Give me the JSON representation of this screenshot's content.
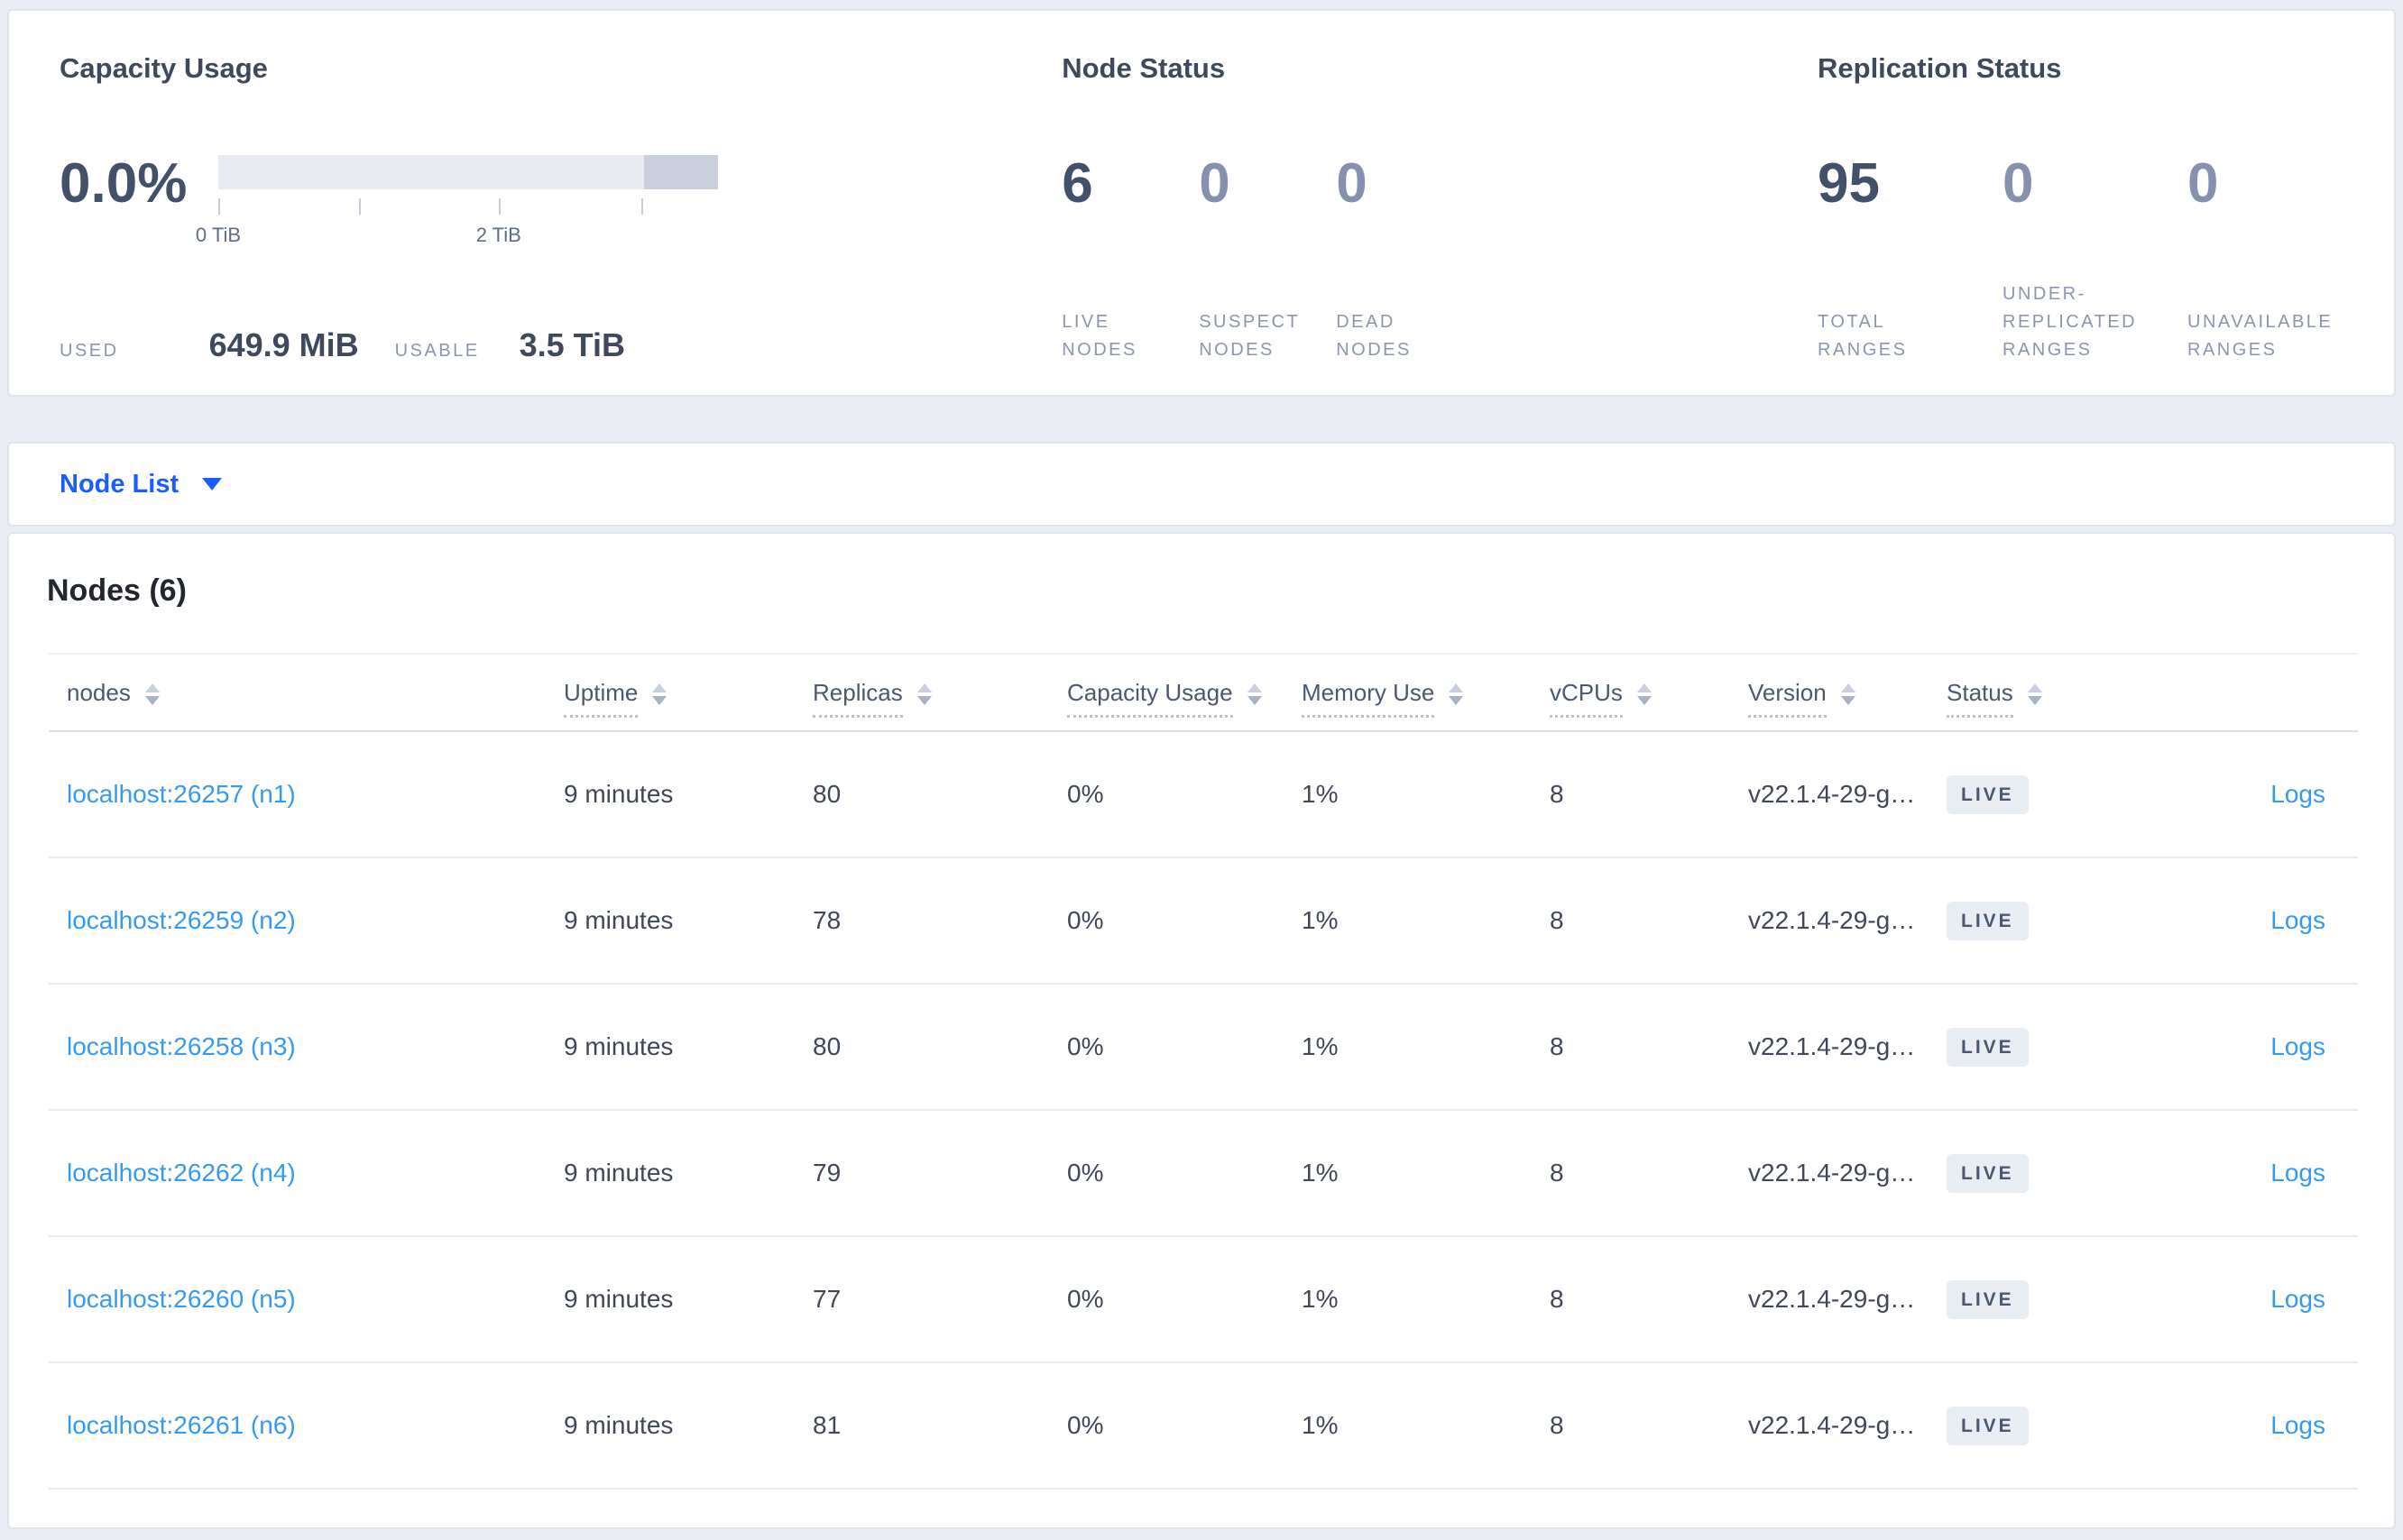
{
  "colors": {
    "page_bg": "#e9edf3",
    "card_bg": "#ffffff",
    "card_border": "#dfe4ec",
    "title_text": "#3e4a5c",
    "number_primary": "#43506a",
    "number_secondary": "#8591ae",
    "stat_label": "#8a96b1",
    "cell_text": "#3f4759",
    "header_text": "#4a5870",
    "primary_blue": "#1b5dfb",
    "link_blue": "#359af3",
    "badge_bg": "#e8edf4",
    "badge_text": "#4a5872",
    "bar_track": "#e7eaf1",
    "bar_segment": "#c9cfda",
    "row_border": "#e5eaf1",
    "tick_label": "#5f6e88"
  },
  "icons": {
    "dropdown_caret": "chevron-down",
    "column_sorter": "sort-arrows"
  },
  "summary": {
    "capacity": {
      "title": "Capacity Usage",
      "percent": "0.0%",
      "bar": {
        "ticks": [
          {
            "pos": 0,
            "label": "0 TiB"
          },
          {
            "pos": 0.282,
            "label": ""
          },
          {
            "pos": 0.561,
            "label": "2 TiB"
          },
          {
            "pos": 0.847,
            "label": ""
          }
        ],
        "segment_start": 0.852
      },
      "used_label": "USED",
      "used_value": "649.9 MiB",
      "usable_label": "USABLE",
      "usable_value": "3.5 TiB"
    },
    "node_status": {
      "title": "Node Status",
      "stats": [
        {
          "value": "6",
          "label": "LIVE NODES",
          "dim": false
        },
        {
          "value": "0",
          "label": "SUSPECT NODES",
          "dim": true
        },
        {
          "value": "0",
          "label": "DEAD NODES",
          "dim": true
        }
      ]
    },
    "replication": {
      "title": "Replication Status",
      "stats": [
        {
          "value": "95",
          "label": "TOTAL RANGES",
          "dim": false
        },
        {
          "value": "0",
          "label": "UNDER-REPLICATED RANGES",
          "dim": true
        },
        {
          "value": "0",
          "label": "UNAVAILABLE RANGES",
          "dim": true
        }
      ]
    }
  },
  "view_selector": {
    "label": "Node List"
  },
  "nodes_section": {
    "title": "Nodes (6)",
    "columns": [
      {
        "key": "nodes",
        "label": "nodes",
        "sortable": true,
        "underlined": false
      },
      {
        "key": "uptime",
        "label": "Uptime",
        "sortable": true,
        "underlined": true
      },
      {
        "key": "replicas",
        "label": "Replicas",
        "sortable": true,
        "underlined": true
      },
      {
        "key": "capacity",
        "label": "Capacity Usage",
        "sortable": true,
        "underlined": true
      },
      {
        "key": "memory",
        "label": "Memory Use",
        "sortable": true,
        "underlined": true
      },
      {
        "key": "vcpus",
        "label": "vCPUs",
        "sortable": true,
        "underlined": true
      },
      {
        "key": "version",
        "label": "Version",
        "sortable": true,
        "underlined": true
      },
      {
        "key": "status",
        "label": "Status",
        "sortable": true,
        "underlined": true
      },
      {
        "key": "logs",
        "label": "",
        "sortable": false,
        "underlined": false
      }
    ],
    "rows": [
      {
        "address": "localhost:26257 (n1)",
        "uptime": "9 minutes",
        "replicas": "80",
        "capacity": "0%",
        "memory": "1%",
        "vcpus": "8",
        "version": "v22.1.4-29-g…",
        "status": "LIVE",
        "logs": "Logs"
      },
      {
        "address": "localhost:26259 (n2)",
        "uptime": "9 minutes",
        "replicas": "78",
        "capacity": "0%",
        "memory": "1%",
        "vcpus": "8",
        "version": "v22.1.4-29-g…",
        "status": "LIVE",
        "logs": "Logs"
      },
      {
        "address": "localhost:26258 (n3)",
        "uptime": "9 minutes",
        "replicas": "80",
        "capacity": "0%",
        "memory": "1%",
        "vcpus": "8",
        "version": "v22.1.4-29-g…",
        "status": "LIVE",
        "logs": "Logs"
      },
      {
        "address": "localhost:26262 (n4)",
        "uptime": "9 minutes",
        "replicas": "79",
        "capacity": "0%",
        "memory": "1%",
        "vcpus": "8",
        "version": "v22.1.4-29-g…",
        "status": "LIVE",
        "logs": "Logs"
      },
      {
        "address": "localhost:26260 (n5)",
        "uptime": "9 minutes",
        "replicas": "77",
        "capacity": "0%",
        "memory": "1%",
        "vcpus": "8",
        "version": "v22.1.4-29-g…",
        "status": "LIVE",
        "logs": "Logs"
      },
      {
        "address": "localhost:26261 (n6)",
        "uptime": "9 minutes",
        "replicas": "81",
        "capacity": "0%",
        "memory": "1%",
        "vcpus": "8",
        "version": "v22.1.4-29-g…",
        "status": "LIVE",
        "logs": "Logs"
      }
    ]
  }
}
